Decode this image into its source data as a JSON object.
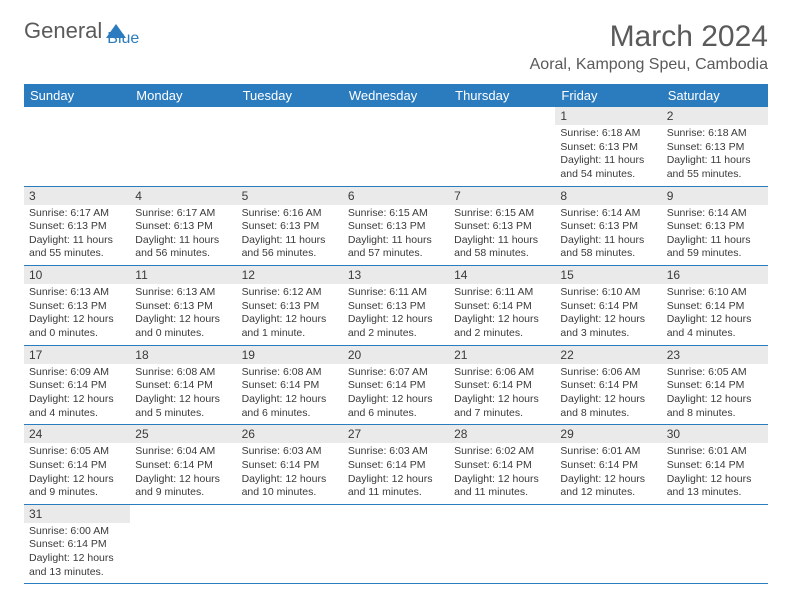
{
  "logo": {
    "word1": "General",
    "word2": "Blue"
  },
  "title": "March 2024",
  "location": "Aoral, Kampong Speu, Cambodia",
  "colors": {
    "header_bg": "#2b7bbf",
    "header_text": "#ffffff",
    "daynum_bg": "#eaeaea",
    "text": "#3a3a3a",
    "rule": "#2b7bbf"
  },
  "weekdays": [
    "Sunday",
    "Monday",
    "Tuesday",
    "Wednesday",
    "Thursday",
    "Friday",
    "Saturday"
  ],
  "leading_blanks": 5,
  "days": [
    {
      "n": 1,
      "sunrise": "6:18 AM",
      "sunset": "6:13 PM",
      "daylight": "11 hours and 54 minutes."
    },
    {
      "n": 2,
      "sunrise": "6:18 AM",
      "sunset": "6:13 PM",
      "daylight": "11 hours and 55 minutes."
    },
    {
      "n": 3,
      "sunrise": "6:17 AM",
      "sunset": "6:13 PM",
      "daylight": "11 hours and 55 minutes."
    },
    {
      "n": 4,
      "sunrise": "6:17 AM",
      "sunset": "6:13 PM",
      "daylight": "11 hours and 56 minutes."
    },
    {
      "n": 5,
      "sunrise": "6:16 AM",
      "sunset": "6:13 PM",
      "daylight": "11 hours and 56 minutes."
    },
    {
      "n": 6,
      "sunrise": "6:15 AM",
      "sunset": "6:13 PM",
      "daylight": "11 hours and 57 minutes."
    },
    {
      "n": 7,
      "sunrise": "6:15 AM",
      "sunset": "6:13 PM",
      "daylight": "11 hours and 58 minutes."
    },
    {
      "n": 8,
      "sunrise": "6:14 AM",
      "sunset": "6:13 PM",
      "daylight": "11 hours and 58 minutes."
    },
    {
      "n": 9,
      "sunrise": "6:14 AM",
      "sunset": "6:13 PM",
      "daylight": "11 hours and 59 minutes."
    },
    {
      "n": 10,
      "sunrise": "6:13 AM",
      "sunset": "6:13 PM",
      "daylight": "12 hours and 0 minutes."
    },
    {
      "n": 11,
      "sunrise": "6:13 AM",
      "sunset": "6:13 PM",
      "daylight": "12 hours and 0 minutes."
    },
    {
      "n": 12,
      "sunrise": "6:12 AM",
      "sunset": "6:13 PM",
      "daylight": "12 hours and 1 minute."
    },
    {
      "n": 13,
      "sunrise": "6:11 AM",
      "sunset": "6:13 PM",
      "daylight": "12 hours and 2 minutes."
    },
    {
      "n": 14,
      "sunrise": "6:11 AM",
      "sunset": "6:14 PM",
      "daylight": "12 hours and 2 minutes."
    },
    {
      "n": 15,
      "sunrise": "6:10 AM",
      "sunset": "6:14 PM",
      "daylight": "12 hours and 3 minutes."
    },
    {
      "n": 16,
      "sunrise": "6:10 AM",
      "sunset": "6:14 PM",
      "daylight": "12 hours and 4 minutes."
    },
    {
      "n": 17,
      "sunrise": "6:09 AM",
      "sunset": "6:14 PM",
      "daylight": "12 hours and 4 minutes."
    },
    {
      "n": 18,
      "sunrise": "6:08 AM",
      "sunset": "6:14 PM",
      "daylight": "12 hours and 5 minutes."
    },
    {
      "n": 19,
      "sunrise": "6:08 AM",
      "sunset": "6:14 PM",
      "daylight": "12 hours and 6 minutes."
    },
    {
      "n": 20,
      "sunrise": "6:07 AM",
      "sunset": "6:14 PM",
      "daylight": "12 hours and 6 minutes."
    },
    {
      "n": 21,
      "sunrise": "6:06 AM",
      "sunset": "6:14 PM",
      "daylight": "12 hours and 7 minutes."
    },
    {
      "n": 22,
      "sunrise": "6:06 AM",
      "sunset": "6:14 PM",
      "daylight": "12 hours and 8 minutes."
    },
    {
      "n": 23,
      "sunrise": "6:05 AM",
      "sunset": "6:14 PM",
      "daylight": "12 hours and 8 minutes."
    },
    {
      "n": 24,
      "sunrise": "6:05 AM",
      "sunset": "6:14 PM",
      "daylight": "12 hours and 9 minutes."
    },
    {
      "n": 25,
      "sunrise": "6:04 AM",
      "sunset": "6:14 PM",
      "daylight": "12 hours and 9 minutes."
    },
    {
      "n": 26,
      "sunrise": "6:03 AM",
      "sunset": "6:14 PM",
      "daylight": "12 hours and 10 minutes."
    },
    {
      "n": 27,
      "sunrise": "6:03 AM",
      "sunset": "6:14 PM",
      "daylight": "12 hours and 11 minutes."
    },
    {
      "n": 28,
      "sunrise": "6:02 AM",
      "sunset": "6:14 PM",
      "daylight": "12 hours and 11 minutes."
    },
    {
      "n": 29,
      "sunrise": "6:01 AM",
      "sunset": "6:14 PM",
      "daylight": "12 hours and 12 minutes."
    },
    {
      "n": 30,
      "sunrise": "6:01 AM",
      "sunset": "6:14 PM",
      "daylight": "12 hours and 13 minutes."
    },
    {
      "n": 31,
      "sunrise": "6:00 AM",
      "sunset": "6:14 PM",
      "daylight": "12 hours and 13 minutes."
    }
  ],
  "labels": {
    "sunrise": "Sunrise: ",
    "sunset": "Sunset: ",
    "daylight": "Daylight: "
  }
}
